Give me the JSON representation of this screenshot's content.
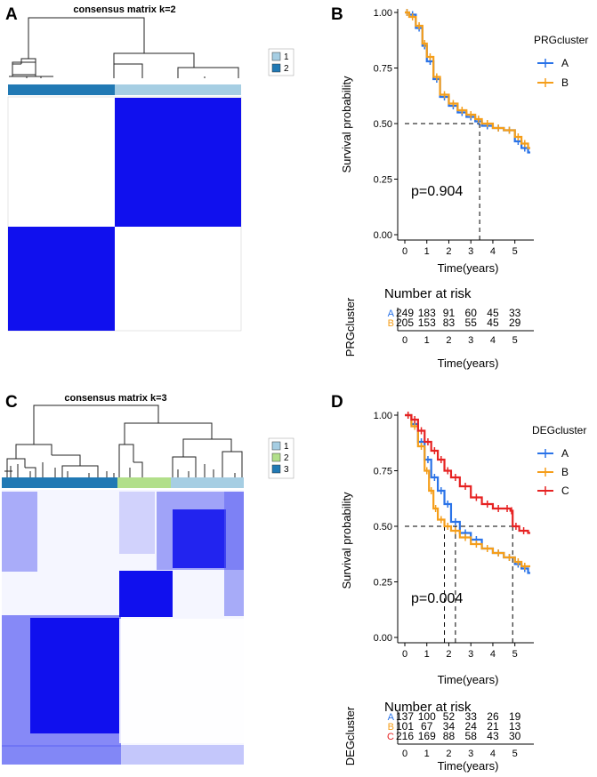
{
  "panels": {
    "A": {
      "letter": "A",
      "title": "consensus matrix k=2",
      "legend": [
        {
          "label": "1",
          "color": "#a6cee3"
        },
        {
          "label": "2",
          "color": "#2179b4"
        }
      ],
      "cluster_bar": [
        {
          "cluster": "2",
          "fraction": 0.42
        },
        {
          "cluster": "1",
          "fraction": 0.58
        }
      ],
      "matrix_color": "#0000ee"
    },
    "B": {
      "letter": "B",
      "pvalue": "p=0.904",
      "legend_title": "PRGcluster",
      "groups": [
        {
          "name": "A",
          "color": "#2a73e8"
        },
        {
          "name": "B",
          "color": "#f59e1a"
        }
      ],
      "risk_title": "Number at risk",
      "risk_ylabel": "PRGcluster",
      "risk_rows": [
        {
          "label": "A",
          "color": "#2a73e8",
          "counts": [
            "249",
            "183",
            "91",
            "60",
            "45",
            "33"
          ]
        },
        {
          "label": "B",
          "color": "#f59e1a",
          "counts": [
            "205",
            "153",
            "83",
            "55",
            "45",
            "29"
          ]
        }
      ]
    },
    "C": {
      "letter": "C",
      "title": "consensus matrix k=3",
      "legend": [
        {
          "label": "1",
          "color": "#a6cee3"
        },
        {
          "label": "2",
          "color": "#b2df8a"
        },
        {
          "label": "3",
          "color": "#2179b4"
        }
      ],
      "cluster_bar": [
        {
          "cluster": "3",
          "fraction": 0.46
        },
        {
          "cluster": "2",
          "fraction": 0.22
        },
        {
          "cluster": "1",
          "fraction": 0.32
        }
      ]
    },
    "D": {
      "letter": "D",
      "pvalue": "p=0.004",
      "legend_title": "DEGcluster",
      "groups": [
        {
          "name": "A",
          "color": "#2a73e8"
        },
        {
          "name": "B",
          "color": "#f59e1a"
        },
        {
          "name": "C",
          "color": "#e62222"
        }
      ],
      "risk_title": "Number at risk",
      "risk_ylabel": "DEGcluster",
      "risk_rows": [
        {
          "label": "A",
          "color": "#2a73e8",
          "counts": [
            "137",
            "100",
            "52",
            "33",
            "26",
            "19"
          ]
        },
        {
          "label": "B",
          "color": "#f59e1a",
          "counts": [
            "101",
            "67",
            "34",
            "24",
            "21",
            "13"
          ]
        },
        {
          "label": "C",
          "color": "#e62222",
          "counts": [
            "216",
            "169",
            "88",
            "58",
            "43",
            "30"
          ]
        }
      ]
    }
  },
  "chart_data": [
    {
      "type": "line",
      "panel": "B",
      "title": "",
      "xlabel": "Time(years)",
      "ylabel": "Survival probability",
      "xlim": [
        0,
        5.7
      ],
      "ylim": [
        0,
        1
      ],
      "xticks": [
        "0",
        "1",
        "2",
        "3",
        "4",
        "5"
      ],
      "yticks": [
        "0.00",
        "0.25",
        "0.50",
        "0.75",
        "1.00"
      ],
      "median_lines_x": [
        3.4
      ],
      "series": [
        {
          "name": "A",
          "x": [
            0,
            0.2,
            0.5,
            0.8,
            1.0,
            1.3,
            1.6,
            2.0,
            2.4,
            2.8,
            3.2,
            3.5,
            4.0,
            4.5,
            5.0,
            5.3,
            5.6
          ],
          "y": [
            1.0,
            0.99,
            0.93,
            0.85,
            0.78,
            0.7,
            0.62,
            0.58,
            0.55,
            0.53,
            0.51,
            0.49,
            0.48,
            0.47,
            0.42,
            0.39,
            0.37
          ]
        },
        {
          "name": "B",
          "x": [
            0,
            0.2,
            0.5,
            0.8,
            1.0,
            1.3,
            1.6,
            2.0,
            2.4,
            2.8,
            3.2,
            3.5,
            4.0,
            4.5,
            5.0,
            5.3,
            5.6
          ],
          "y": [
            1.0,
            0.98,
            0.94,
            0.86,
            0.8,
            0.71,
            0.63,
            0.59,
            0.56,
            0.54,
            0.52,
            0.5,
            0.48,
            0.47,
            0.44,
            0.41,
            0.39
          ]
        }
      ]
    },
    {
      "type": "line",
      "panel": "D",
      "title": "",
      "xlabel": "Time(years)",
      "ylabel": "Survival probability",
      "xlim": [
        0,
        5.7
      ],
      "ylim": [
        0,
        1
      ],
      "xticks": [
        "0",
        "1",
        "2",
        "3",
        "4",
        "5"
      ],
      "yticks": [
        "0.00",
        "0.25",
        "0.50",
        "0.75",
        "1.00"
      ],
      "median_lines_x": [
        1.8,
        2.3,
        4.9
      ],
      "series": [
        {
          "name": "A",
          "x": [
            0,
            0.3,
            0.6,
            0.9,
            1.2,
            1.5,
            1.8,
            2.1,
            2.5,
            3.0,
            3.5,
            4.0,
            4.5,
            5.0,
            5.3,
            5.6
          ],
          "y": [
            1.0,
            0.96,
            0.88,
            0.8,
            0.72,
            0.66,
            0.6,
            0.52,
            0.47,
            0.44,
            0.4,
            0.38,
            0.36,
            0.33,
            0.31,
            0.29
          ]
        },
        {
          "name": "B",
          "x": [
            0,
            0.3,
            0.6,
            0.9,
            1.1,
            1.3,
            1.5,
            1.8,
            2.1,
            2.5,
            3.0,
            3.5,
            4.0,
            4.5,
            5.0,
            5.3,
            5.6
          ],
          "y": [
            1.0,
            0.95,
            0.86,
            0.75,
            0.66,
            0.58,
            0.53,
            0.5,
            0.48,
            0.45,
            0.42,
            0.4,
            0.38,
            0.36,
            0.34,
            0.32,
            0.32
          ]
        },
        {
          "name": "C",
          "x": [
            0,
            0.3,
            0.6,
            0.9,
            1.2,
            1.5,
            1.8,
            2.1,
            2.5,
            3.0,
            3.5,
            4.0,
            4.5,
            4.8,
            4.9,
            5.2,
            5.6
          ],
          "y": [
            1.0,
            0.98,
            0.93,
            0.88,
            0.84,
            0.8,
            0.75,
            0.72,
            0.68,
            0.63,
            0.6,
            0.58,
            0.58,
            0.57,
            0.5,
            0.48,
            0.47
          ]
        }
      ]
    }
  ]
}
